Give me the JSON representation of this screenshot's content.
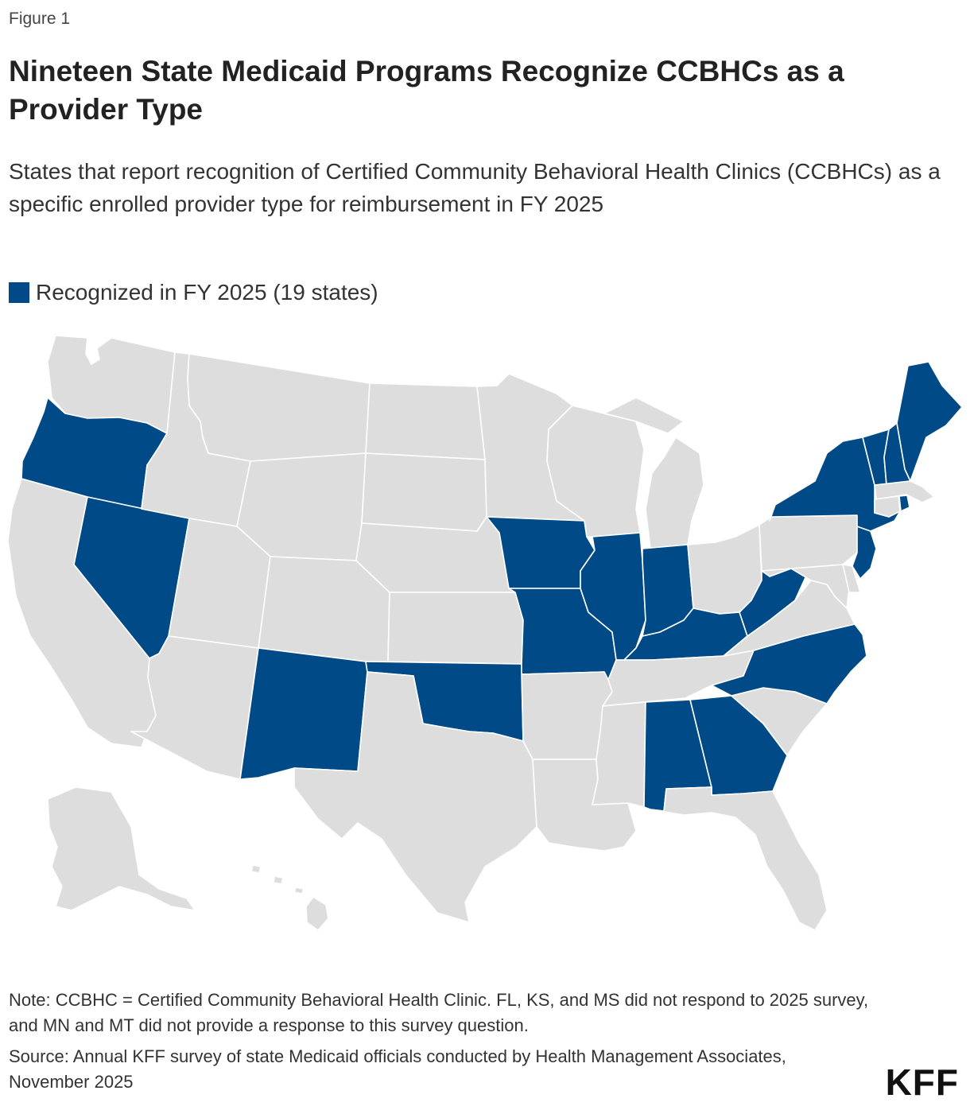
{
  "figure_label": "Figure 1",
  "title": "Nineteen State Medicaid Programs Recognize CCBHCs as a Provider Type",
  "subtitle": "States that report recognition of Certified Community Behavioral Health Clinics (CCBHCs) as a specific enrolled provider type for reimbursement in FY 2025",
  "legend": {
    "label": "Recognized in FY 2025 (19 states)",
    "color": "#004b87"
  },
  "colors": {
    "recognized": "#004b87",
    "not_recognized": "#dddddd"
  },
  "map_data": {
    "recognized_states": [
      "OR",
      "NV",
      "NM",
      "OK",
      "IA",
      "MO",
      "IL",
      "IN",
      "KY",
      "WV",
      "NC",
      "GA",
      "AL",
      "NY",
      "VT",
      "NH",
      "ME",
      "NJ",
      "RI"
    ],
    "other_states": [
      "WA",
      "CA",
      "ID",
      "MT",
      "WY",
      "UT",
      "AZ",
      "CO",
      "ND",
      "SD",
      "NE",
      "KS",
      "TX",
      "MN",
      "AR",
      "LA",
      "WI",
      "MI",
      "MS",
      "TN",
      "OH",
      "FL",
      "SC",
      "VA",
      "PA",
      "MD",
      "DE",
      "MA",
      "CT",
      "AK",
      "HI"
    ]
  },
  "note": "Note: CCBHC = Certified Community Behavioral Health Clinic. FL, KS, and MS did not respond to 2025 survey, and MN and MT did not provide a response to this survey question.",
  "source": "Source: Annual KFF survey of state Medicaid officials conducted by Health Management Associates, November 2025",
  "logo": "KFF"
}
